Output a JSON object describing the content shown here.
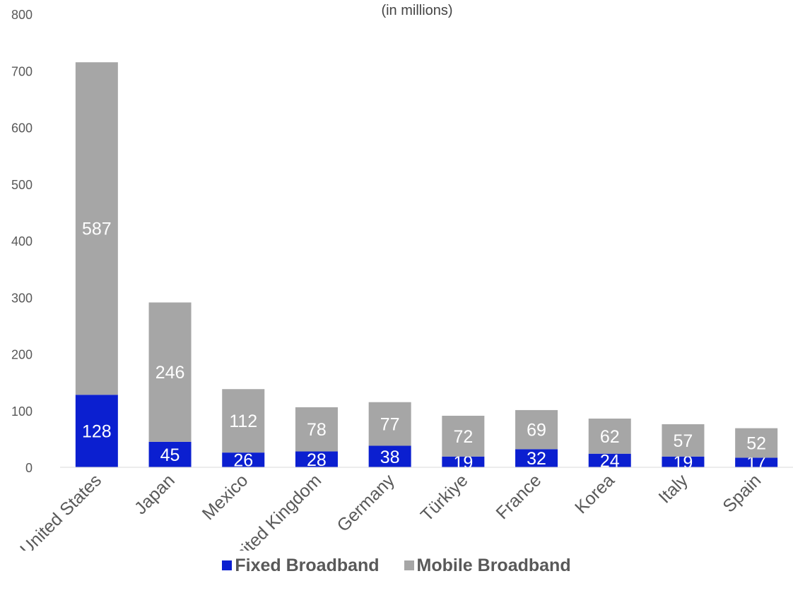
{
  "subtitle": "(in millions)",
  "chart_data": {
    "type": "bar",
    "stacked": true,
    "subtitle": "(in millions)",
    "categories": [
      "United States",
      "Japan",
      "Mexico",
      "United Kingdom",
      "Germany",
      "Türkiye",
      "France",
      "Korea",
      "Italy",
      "Spain"
    ],
    "series": [
      {
        "name": "Fixed Broadband",
        "color": "#0b1fd0",
        "values": [
          128,
          45,
          26,
          28,
          38,
          19,
          32,
          24,
          19,
          17
        ]
      },
      {
        "name": "Mobile Broadband",
        "color": "#a6a6a6",
        "values": [
          587,
          246,
          112,
          78,
          77,
          72,
          69,
          62,
          57,
          52
        ]
      }
    ],
    "ylim": [
      0,
      800
    ],
    "yticks": [
      0,
      100,
      200,
      300,
      400,
      500,
      600,
      700,
      800
    ],
    "grid": false,
    "legend_position": "bottom"
  }
}
